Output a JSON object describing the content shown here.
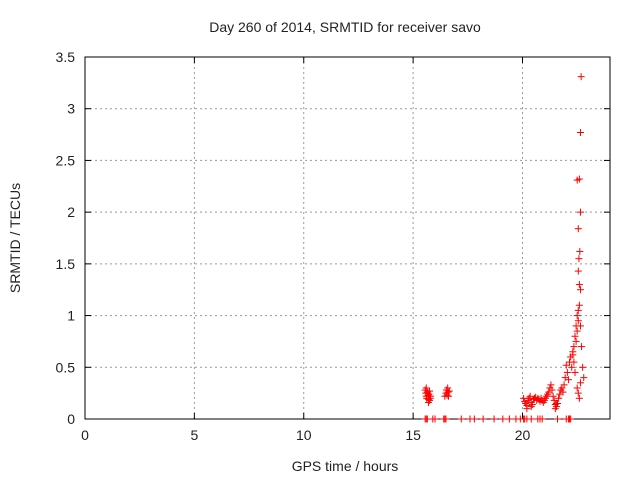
{
  "chart_data": {
    "type": "scatter",
    "title": "Day 260 of 2014, SRMTID for receiver savo",
    "xlabel": "GPS time / hours",
    "ylabel": "SRMTID / TECUs",
    "xlim": [
      0,
      24
    ],
    "ylim": [
      0,
      3.5
    ],
    "x_ticks": [
      {
        "value": 0,
        "label": "0"
      },
      {
        "value": 5,
        "label": "5"
      },
      {
        "value": 10,
        "label": "10"
      },
      {
        "value": 15,
        "label": "15"
      },
      {
        "value": 20,
        "label": "20"
      }
    ],
    "y_ticks": [
      {
        "value": 0,
        "label": "0"
      },
      {
        "value": 0.5,
        "label": "0.5"
      },
      {
        "value": 1,
        "label": "1"
      },
      {
        "value": 1.5,
        "label": "1.5"
      },
      {
        "value": 2,
        "label": "2"
      },
      {
        "value": 2.5,
        "label": "2.5"
      },
      {
        "value": 3,
        "label": "3"
      },
      {
        "value": 3.5,
        "label": "3.5"
      }
    ],
    "grid": true,
    "marker": "plus",
    "marker_color": "#ff0000",
    "series": [
      {
        "points": [
          [
            15.55,
            0.0
          ],
          [
            15.6,
            0.0
          ],
          [
            15.65,
            0.0
          ],
          [
            15.9,
            0.0
          ],
          [
            16.0,
            0.0
          ],
          [
            16.4,
            0.0
          ],
          [
            16.45,
            0.0
          ],
          [
            16.5,
            0.0
          ],
          [
            17.2,
            0.0
          ],
          [
            17.6,
            0.0
          ],
          [
            17.8,
            0.0
          ],
          [
            18.2,
            0.0
          ],
          [
            18.7,
            0.0
          ],
          [
            19.1,
            0.0
          ],
          [
            19.4,
            0.0
          ],
          [
            19.7,
            0.0
          ],
          [
            19.9,
            0.0
          ],
          [
            20.05,
            0.0
          ],
          [
            20.1,
            0.0
          ],
          [
            20.2,
            0.0
          ],
          [
            20.4,
            0.0
          ],
          [
            20.7,
            0.0
          ],
          [
            20.8,
            0.0
          ],
          [
            20.9,
            0.0
          ],
          [
            21.6,
            0.0
          ],
          [
            22.0,
            0.0
          ],
          [
            22.1,
            0.0
          ],
          [
            22.15,
            0.0
          ],
          [
            22.2,
            0.0
          ],
          [
            15.55,
            0.28
          ],
          [
            15.58,
            0.25
          ],
          [
            15.6,
            0.22
          ],
          [
            15.62,
            0.2
          ],
          [
            15.65,
            0.26
          ],
          [
            15.68,
            0.23
          ],
          [
            15.7,
            0.19
          ],
          [
            15.72,
            0.24
          ],
          [
            15.75,
            0.27
          ],
          [
            15.78,
            0.2
          ],
          [
            15.8,
            0.22
          ],
          [
            15.6,
            0.3
          ],
          [
            15.7,
            0.16
          ],
          [
            15.75,
            0.18
          ],
          [
            16.45,
            0.22
          ],
          [
            16.5,
            0.25
          ],
          [
            16.52,
            0.28
          ],
          [
            16.55,
            0.23
          ],
          [
            16.58,
            0.3
          ],
          [
            16.6,
            0.26
          ],
          [
            16.62,
            0.22
          ],
          [
            16.65,
            0.27
          ],
          [
            20.05,
            0.2
          ],
          [
            20.1,
            0.17
          ],
          [
            20.15,
            0.15
          ],
          [
            20.2,
            0.13
          ],
          [
            20.25,
            0.18
          ],
          [
            20.3,
            0.2
          ],
          [
            20.35,
            0.22
          ],
          [
            20.4,
            0.16
          ],
          [
            20.45,
            0.14
          ],
          [
            20.5,
            0.19
          ],
          [
            20.55,
            0.2
          ],
          [
            20.6,
            0.21
          ],
          [
            20.65,
            0.18
          ],
          [
            20.7,
            0.2
          ],
          [
            20.75,
            0.19
          ],
          [
            20.8,
            0.17
          ],
          [
            20.85,
            0.2
          ],
          [
            20.9,
            0.18
          ],
          [
            20.95,
            0.16
          ],
          [
            21.0,
            0.18
          ],
          [
            21.05,
            0.2
          ],
          [
            21.1,
            0.22
          ],
          [
            21.15,
            0.24
          ],
          [
            21.2,
            0.26
          ],
          [
            21.25,
            0.3
          ],
          [
            21.3,
            0.33
          ],
          [
            21.35,
            0.28
          ],
          [
            21.4,
            0.22
          ],
          [
            21.45,
            0.18
          ],
          [
            21.5,
            0.14
          ],
          [
            21.55,
            0.12
          ],
          [
            21.6,
            0.15
          ],
          [
            21.65,
            0.2
          ],
          [
            21.7,
            0.24
          ],
          [
            21.75,
            0.28
          ],
          [
            21.8,
            0.3
          ],
          [
            21.85,
            0.26
          ],
          [
            21.9,
            0.33
          ],
          [
            21.95,
            0.4
          ],
          [
            22.0,
            0.52
          ],
          [
            22.05,
            0.45
          ],
          [
            22.1,
            0.38
          ],
          [
            22.15,
            0.55
          ],
          [
            22.2,
            0.6
          ],
          [
            22.25,
            0.5
          ],
          [
            22.3,
            0.62
          ],
          [
            22.35,
            0.7
          ],
          [
            22.4,
            0.8
          ],
          [
            22.45,
            0.9
          ],
          [
            22.5,
            1.0
          ],
          [
            22.55,
            1.05
          ],
          [
            22.6,
            1.1
          ],
          [
            22.65,
            0.9
          ],
          [
            22.7,
            0.7
          ],
          [
            22.75,
            0.5
          ],
          [
            22.8,
            0.4
          ],
          [
            22.5,
            0.3
          ],
          [
            22.55,
            0.25
          ],
          [
            22.6,
            0.2
          ],
          [
            22.65,
            0.35
          ],
          [
            22.4,
            0.45
          ],
          [
            22.35,
            0.55
          ],
          [
            22.3,
            0.65
          ],
          [
            22.45,
            0.75
          ],
          [
            22.5,
            0.85
          ],
          [
            22.55,
            0.95
          ],
          [
            22.6,
            1.3
          ],
          [
            22.65,
            1.25
          ],
          [
            22.55,
            1.43
          ],
          [
            22.58,
            1.55
          ],
          [
            22.62,
            1.62
          ],
          [
            22.55,
            1.84
          ],
          [
            22.65,
            2.0
          ],
          [
            22.5,
            2.31
          ],
          [
            22.6,
            2.32
          ],
          [
            22.65,
            2.77
          ],
          [
            22.68,
            3.31
          ],
          [
            20.2,
            0.1
          ],
          [
            20.4,
            0.12
          ],
          [
            21.5,
            0.1
          ],
          [
            21.55,
            0.15
          ]
        ]
      }
    ]
  }
}
